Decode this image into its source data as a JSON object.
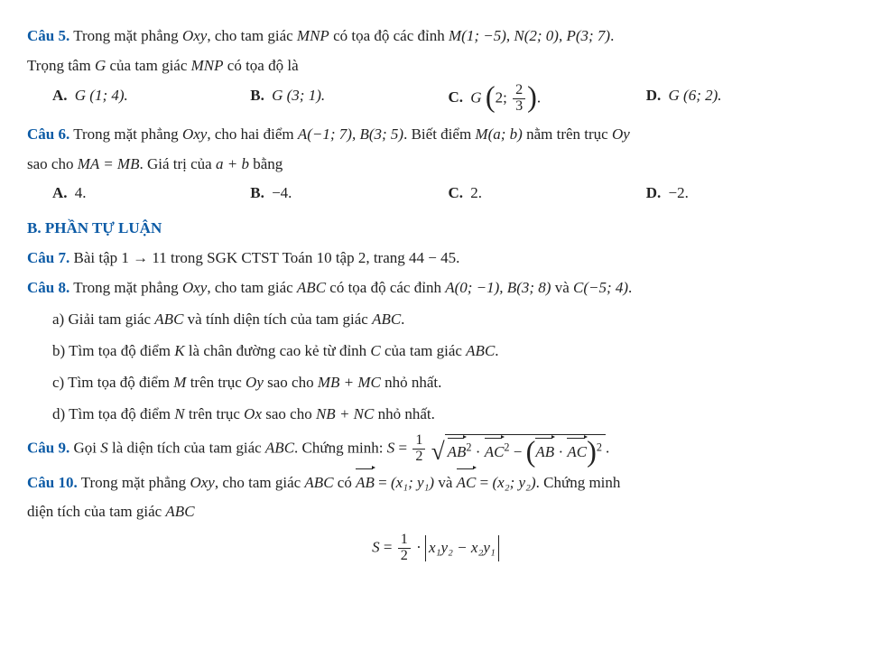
{
  "q5": {
    "label": "Câu 5.",
    "text_before": "Trong mặt phẳng ",
    "oxy": "Oxy",
    "text_mid1": ", cho tam giác ",
    "mnp": "MNP",
    "text_mid2": " có tọa độ các đỉnh ",
    "pts": "M(1; −5), N(2; 0), P(3; 7)",
    "line2a": "Trọng tâm ",
    "G": "G",
    "line2b": " của tam giác ",
    "line2c": " có tọa độ là",
    "A": {
      "lbl": "A.",
      "val": "G (1; 4)."
    },
    "B": {
      "lbl": "B.",
      "val": "G (3; 1)."
    },
    "C": {
      "lbl": "C.",
      "pre": "G ",
      "n": "2",
      "d": "3",
      "post": "."
    },
    "D": {
      "lbl": "D.",
      "val": "G (6; 2)."
    }
  },
  "q6": {
    "label": "Câu 6.",
    "t1": "Trong mặt phẳng ",
    "oxy": "Oxy",
    "t2": ", cho hai điểm ",
    "pts": "A(−1; 7), B(3; 5)",
    "t3": ". Biết điểm ",
    "m": "M(a; b)",
    "t4": " nằm trên trục ",
    "oy": "Oy",
    "l2a": "sao cho ",
    "eq": "MA = MB",
    "l2b": ". Giá trị của ",
    "ab": "a + b",
    "l2c": " bằng",
    "A": {
      "lbl": "A.",
      "val": "4."
    },
    "B": {
      "lbl": "B.",
      "val": "−4."
    },
    "C": {
      "lbl": "C.",
      "val": "2."
    },
    "D": {
      "lbl": "D.",
      "val": "−2."
    }
  },
  "sectionB": "B. PHẦN TỰ LUẬN",
  "q7": {
    "label": "Câu 7.",
    "text": "Bài tập 1 → 11 trong SGK CTST Toán 10 tập 2, trang 44 − 45."
  },
  "q8": {
    "label": "Câu 8.",
    "t1": "Trong mặt phẳng ",
    "oxy": "Oxy",
    "t2": ", cho tam giác ",
    "abc": "ABC",
    "t3": " có tọa độ các đỉnh ",
    "pts": "A(0; −1), B(3; 8)",
    "and": " và ",
    "pc": "C(−5; 4)",
    "a": {
      "lbl": "a)",
      "t1": "Giải tam giác ",
      "abc": "ABC",
      "t2": " và tính diện tích của tam giác ",
      "t3": "."
    },
    "b": {
      "lbl": "b)",
      "t1": "Tìm tọa độ điểm ",
      "K": "K",
      "t2": " là chân đường cao kẻ từ đỉnh ",
      "C": "C",
      "t3": " của tam giác ",
      "abc": "ABC",
      "t4": "."
    },
    "c": {
      "lbl": "c)",
      "t1": "Tìm tọa độ điểm ",
      "M": "M",
      "t2": " trên trục ",
      "oy": "Oy",
      "t3": " sao cho ",
      "expr": "MB + MC",
      "t4": " nhỏ nhất."
    },
    "d": {
      "lbl": "d)",
      "t1": "Tìm tọa độ điểm ",
      "N": "N",
      "t2": " trên trục ",
      "ox": "Ox",
      "t3": " sao cho ",
      "expr": "NB + NC",
      "t4": " nhỏ nhất."
    }
  },
  "q9": {
    "label": "Câu 9.",
    "t1": "Gọi ",
    "S": "S",
    "t2": " là diện tích của tam giác ",
    "abc": "ABC",
    "t3": ". Chứng minh: ",
    "Seq": "S",
    "eq": " = ",
    "half_n": "1",
    "half_d": "2",
    "AB": "AB",
    "sq1": "2",
    "dot": " · ",
    "AC": "AC",
    "sq2": "2",
    "minus": " − ",
    "sq3": "2",
    "period": "."
  },
  "q10": {
    "label": "Câu 10.",
    "t1": "Trong mặt phẳng ",
    "oxy": "Oxy",
    "t2": ", cho tam giác ",
    "abc": "ABC",
    "t3": " có ",
    "AB": "AB",
    "eq1": " = ",
    "v1": "(x₁; y₁)",
    "and": " và ",
    "AC": "AC",
    "eq2": " = ",
    "v2": "(x₂; y₂)",
    "t4": ". Chứng minh",
    "l2": "diện tích của tam giác ",
    "eq": {
      "S": "S",
      "eq": " = ",
      "half_n": "1",
      "half_d": "2",
      "dot": " · ",
      "expr": "x₁y₂ − x₂y₁"
    }
  }
}
